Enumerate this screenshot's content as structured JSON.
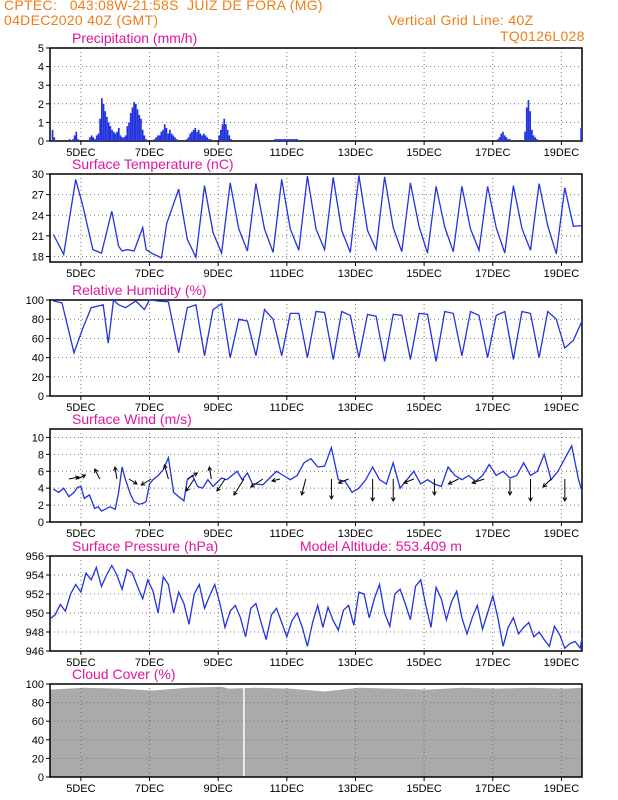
{
  "header": {
    "line1_left": "CPTEC:   043:08W-21:58S  JUIZ DE FORA (MG)",
    "line2_left": "04DEC2020 40Z (GMT)",
    "line1_right": "Vertical Grid Line: 40Z",
    "line2_right": "TQ0126L028"
  },
  "colors": {
    "header": "#ee7d1a",
    "title": "#e0169e",
    "line": "#2233dd",
    "cloud": "#aaaaaa",
    "wind_arrow": "#000000"
  },
  "x_axis": {
    "tick_labels": [
      "5DEC",
      "7DEC",
      "9DEC",
      "11DEC",
      "13DEC",
      "15DEC",
      "17DEC",
      "19DEC"
    ]
  },
  "chart_data": [
    {
      "type": "bar",
      "title": "Precipitation (mm/h)",
      "y_ticks": [
        0,
        1,
        2,
        3,
        4,
        5
      ],
      "ylim": [
        0,
        5
      ],
      "values": [
        0,
        0.6,
        0.2,
        0,
        0,
        0,
        0,
        0,
        0,
        0,
        0,
        0.1,
        0,
        0.1,
        0.3,
        0.5,
        0.1,
        0,
        0,
        0,
        0,
        0,
        0,
        0.2,
        0.3,
        0.2,
        0.1,
        0.3,
        0.4,
        1.2,
        2.3,
        2.0,
        1.6,
        1.3,
        1.0,
        0.8,
        0.6,
        0.5,
        0.4,
        0.5,
        0.7,
        0.3,
        0.2,
        0.2,
        0.3,
        0.8,
        1.0,
        1.5,
        1.8,
        2.1,
        2.0,
        1.7,
        1.4,
        1.2,
        0.6,
        0.3,
        0.1,
        0,
        0,
        0,
        0,
        0.1,
        0.2,
        0.3,
        0.3,
        0.5,
        0.6,
        0.9,
        0.7,
        0.4,
        0.6,
        0.4,
        0.3,
        0.2,
        0.1,
        0,
        0,
        0,
        0,
        0,
        0.1,
        0.2,
        0.4,
        0.5,
        0.6,
        0.7,
        0.5,
        0.6,
        0.4,
        0.3,
        0.4,
        0.3,
        0.2,
        0.1,
        0.1,
        0,
        0,
        0,
        0,
        0.3,
        0.6,
        0.9,
        1.2,
        0.9,
        0.6,
        0.3,
        0.1,
        0,
        0,
        0,
        0,
        0,
        0,
        0,
        0,
        0,
        0,
        0,
        0,
        0,
        0,
        0,
        0,
        0,
        0,
        0,
        0,
        0,
        0,
        0,
        0,
        0,
        0.1,
        0.1,
        0.1,
        0.1,
        0.1,
        0.1,
        0.1,
        0.1,
        0.1,
        0.1,
        0.1,
        0.1,
        0.1,
        0.1,
        0,
        0,
        0,
        0,
        0,
        0,
        0,
        0,
        0,
        0,
        0,
        0,
        0,
        0,
        0,
        0,
        0,
        0,
        0,
        0,
        0,
        0,
        0,
        0,
        0,
        0,
        0,
        0,
        0,
        0,
        0,
        0,
        0,
        0,
        0,
        0,
        0,
        0,
        0,
        0,
        0,
        0,
        0,
        0,
        0,
        0,
        0,
        0,
        0,
        0,
        0,
        0,
        0,
        0,
        0,
        0,
        0,
        0,
        0,
        0,
        0,
        0,
        0,
        0,
        0,
        0,
        0,
        0,
        0,
        0,
        0,
        0,
        0,
        0,
        0,
        0,
        0,
        0,
        0,
        0,
        0,
        0,
        0,
        0,
        0,
        0,
        0,
        0,
        0,
        0,
        0,
        0,
        0,
        0,
        0,
        0,
        0,
        0,
        0,
        0,
        0,
        0,
        0,
        0,
        0,
        0,
        0,
        0,
        0,
        0,
        0,
        0,
        0,
        0,
        0,
        0,
        0,
        0.1,
        0.2,
        0.4,
        0.5,
        0.3,
        0.2,
        0.1,
        0.1,
        0,
        0,
        0,
        0,
        0,
        0,
        0,
        0,
        0.5,
        1.8,
        2.2,
        1.6,
        0.6,
        0.3,
        0.2,
        0.1,
        0,
        0,
        0,
        0,
        0,
        0,
        0,
        0,
        0,
        0,
        0,
        0,
        0,
        0,
        0,
        0,
        0,
        0,
        0,
        0,
        0,
        0,
        0,
        0,
        0,
        0.7
      ]
    },
    {
      "type": "line",
      "title": "Surface Temperature (nC)",
      "y_ticks": [
        18,
        21,
        24,
        27,
        30
      ],
      "ylim": [
        17.2,
        30
      ],
      "x_days": [
        0.1,
        0.4,
        0.75,
        0.95,
        1.25,
        1.5,
        1.8,
        2.0,
        2.1,
        2.25,
        2.45,
        2.7,
        2.8,
        2.95,
        3.25,
        3.4,
        3.75,
        4.0,
        4.25,
        4.5,
        4.75,
        5.0,
        5.25,
        5.5,
        5.75,
        6.0,
        6.25,
        6.5,
        6.75,
        7.0,
        7.25,
        7.5,
        7.75,
        8.0,
        8.25,
        8.5,
        8.75,
        9.0,
        9.25,
        9.5,
        9.75,
        10.0,
        10.25,
        10.5,
        10.75,
        11.0,
        11.25,
        11.5,
        11.75,
        12.0,
        12.25,
        12.5,
        12.75,
        13.0,
        13.25,
        13.5,
        13.75,
        14.0,
        14.25,
        14.5,
        14.75,
        15.0,
        15.25,
        15.5
      ],
      "values": [
        21.2,
        18.3,
        29.2,
        25.5,
        19.0,
        18.5,
        24.6,
        19.5,
        18.8,
        19.0,
        18.8,
        22.2,
        19.0,
        18.5,
        17.8,
        22.8,
        27.8,
        20.5,
        17.9,
        28.3,
        21.5,
        18.5,
        28.7,
        22.0,
        18.8,
        28.6,
        22.0,
        18.6,
        29.2,
        22.0,
        18.9,
        29.7,
        22.0,
        19.0,
        29.5,
        21.8,
        18.6,
        29.8,
        21.8,
        19.0,
        29.6,
        22.2,
        18.7,
        28.7,
        22.4,
        18.5,
        28.2,
        22.3,
        18.7,
        28.2,
        22.0,
        18.9,
        28.2,
        22.2,
        18.5,
        28.3,
        22.1,
        18.9,
        28.6,
        22.5,
        18.4,
        28.0,
        22.4,
        22.5
      ]
    },
    {
      "type": "line",
      "title": "Relative Humidity (%)",
      "y_ticks": [
        0,
        20,
        40,
        60,
        80,
        100
      ],
      "ylim": [
        0,
        100
      ],
      "x_days": [
        0.1,
        0.35,
        0.7,
        0.95,
        1.2,
        1.55,
        1.7,
        1.85,
        2.0,
        2.2,
        2.5,
        2.75,
        2.9,
        3.15,
        3.45,
        3.75,
        4.0,
        4.25,
        4.5,
        4.75,
        5.0,
        5.25,
        5.5,
        5.75,
        6.0,
        6.25,
        6.5,
        6.75,
        7.0,
        7.25,
        7.5,
        7.75,
        8.0,
        8.25,
        8.5,
        8.75,
        9.0,
        9.25,
        9.5,
        9.75,
        10.0,
        10.25,
        10.5,
        10.75,
        11.0,
        11.25,
        11.5,
        11.75,
        12.0,
        12.25,
        12.5,
        12.75,
        13.0,
        13.25,
        13.5,
        13.75,
        14.0,
        14.25,
        14.5,
        14.75,
        15.0,
        15.25,
        15.5
      ],
      "values": [
        99,
        97,
        45,
        70,
        92,
        95,
        55,
        100,
        95,
        92,
        99,
        90,
        100,
        99,
        98,
        45,
        92,
        95,
        42,
        90,
        96,
        40,
        80,
        78,
        42,
        90,
        80,
        42,
        86,
        86,
        40,
        88,
        87,
        38,
        88,
        84,
        40,
        85,
        83,
        36,
        85,
        84,
        38,
        86,
        85,
        36,
        88,
        86,
        42,
        88,
        84,
        40,
        84,
        88,
        38,
        88,
        86,
        40,
        88,
        80,
        50,
        58,
        78
      ]
    },
    {
      "type": "line",
      "title": "Surface Wind (m/s)",
      "y_ticks": [
        0,
        2,
        4,
        6,
        8,
        10
      ],
      "ylim": [
        0,
        11
      ],
      "x_days": [
        0.1,
        0.25,
        0.4,
        0.55,
        0.7,
        0.8,
        0.9,
        1.0,
        1.15,
        1.3,
        1.4,
        1.5,
        1.6,
        1.75,
        1.9,
        2.0,
        2.1,
        2.2,
        2.35,
        2.45,
        2.6,
        2.7,
        2.8,
        2.9,
        3.0,
        3.15,
        3.3,
        3.45,
        3.6,
        3.75,
        3.9,
        4.0,
        4.15,
        4.3,
        4.45,
        4.6,
        4.75,
        4.9,
        5.0,
        5.15,
        5.3,
        5.45,
        5.6,
        5.75,
        5.9,
        6.0,
        6.2,
        6.4,
        6.6,
        6.8,
        7.0,
        7.2,
        7.4,
        7.6,
        7.8,
        8.0,
        8.2,
        8.4,
        8.6,
        8.8,
        9.0,
        9.2,
        9.4,
        9.6,
        9.8,
        10.0,
        10.2,
        10.4,
        10.6,
        10.8,
        11.0,
        11.2,
        11.4,
        11.6,
        11.8,
        12.0,
        12.2,
        12.4,
        12.6,
        12.8,
        13.0,
        13.2,
        13.4,
        13.6,
        13.8,
        14.0,
        14.2,
        14.4,
        14.6,
        14.8,
        15.0,
        15.2,
        15.4,
        15.5
      ],
      "values": [
        3.9,
        3.5,
        4.0,
        3.0,
        3.5,
        4.1,
        4.2,
        2.8,
        3.2,
        1.6,
        1.8,
        1.3,
        1.5,
        1.8,
        1.5,
        3.5,
        6.5,
        5.0,
        3.2,
        2.4,
        2.1,
        2.2,
        2.4,
        4.5,
        5.0,
        5.5,
        6.2,
        7.6,
        3.5,
        3.0,
        2.5,
        5.0,
        5.5,
        4.2,
        4.0,
        5.0,
        4.2,
        4.8,
        5.2,
        5.0,
        5.5,
        6.0,
        5.0,
        5.8,
        4.5,
        4.5,
        4.4,
        5.2,
        6.0,
        5.5,
        5.0,
        5.5,
        7.0,
        7.5,
        6.5,
        6.6,
        8.8,
        5.0,
        4.8,
        3.5,
        4.0,
        5.0,
        6.5,
        5.0,
        4.5,
        7.0,
        4.0,
        5.0,
        6.0,
        4.5,
        5.0,
        4.5,
        4.2,
        6.5,
        5.5,
        5.0,
        5.5,
        4.8,
        5.5,
        6.8,
        5.5,
        6.0,
        5.2,
        5.5,
        7.0,
        5.5,
        6.0,
        8.0,
        5.0,
        6.0,
        7.5,
        9.0,
        5.0,
        3.6
      ]
    },
    {
      "type": "line",
      "title": "Surface Pressure (hPa)",
      "annotation": "Model Altitude: 553.409 m",
      "y_ticks": [
        946,
        948,
        950,
        952,
        954,
        956
      ],
      "ylim": [
        946,
        956
      ],
      "x_days": [
        0,
        0.15,
        0.3,
        0.45,
        0.6,
        0.75,
        0.9,
        1.05,
        1.2,
        1.35,
        1.5,
        1.65,
        1.8,
        1.95,
        2.1,
        2.25,
        2.4,
        2.55,
        2.7,
        2.85,
        3.0,
        3.15,
        3.3,
        3.45,
        3.6,
        3.75,
        3.9,
        4.05,
        4.2,
        4.35,
        4.5,
        4.65,
        4.8,
        4.95,
        5.1,
        5.25,
        5.4,
        5.55,
        5.7,
        5.85,
        6.0,
        6.15,
        6.3,
        6.45,
        6.6,
        6.75,
        6.9,
        7.05,
        7.2,
        7.35,
        7.5,
        7.65,
        7.8,
        7.95,
        8.1,
        8.25,
        8.4,
        8.55,
        8.7,
        8.85,
        9.0,
        9.15,
        9.3,
        9.45,
        9.6,
        9.75,
        9.9,
        10.05,
        10.2,
        10.35,
        10.5,
        10.65,
        10.8,
        10.95,
        11.1,
        11.25,
        11.4,
        11.55,
        11.7,
        11.85,
        12.0,
        12.15,
        12.3,
        12.45,
        12.6,
        12.75,
        12.9,
        13.05,
        13.2,
        13.35,
        13.5,
        13.65,
        13.8,
        13.95,
        14.1,
        14.25,
        14.4,
        14.55,
        14.7,
        14.85,
        15.0,
        15.15,
        15.3,
        15.45,
        15.5
      ],
      "values": [
        949.4,
        949.8,
        950.9,
        950.2,
        952.0,
        953.0,
        952.2,
        954.2,
        953.5,
        954.8,
        952.8,
        954.0,
        955.0,
        954.0,
        952.5,
        954.6,
        954.2,
        952.8,
        951.5,
        953.5,
        952.3,
        950.0,
        953.8,
        953.0,
        950.0,
        952.2,
        951.0,
        948.8,
        952.0,
        953.0,
        950.5,
        951.8,
        953.0,
        951.0,
        948.5,
        950.2,
        950.8,
        949.5,
        947.5,
        950.5,
        951.0,
        949.0,
        947.2,
        949.8,
        950.5,
        949.0,
        947.5,
        949.2,
        950.0,
        948.5,
        946.5,
        949.0,
        950.8,
        948.5,
        950.6,
        949.2,
        948.2,
        950.3,
        950.8,
        948.7,
        952.2,
        952.0,
        949.5,
        951.5,
        953.0,
        950.0,
        948.6,
        952.0,
        952.5,
        951.0,
        949.3,
        952.8,
        953.5,
        950.8,
        948.5,
        952.7,
        951.5,
        949.3,
        951.2,
        952.3,
        949.5,
        947.8,
        949.5,
        950.8,
        948.3,
        950.0,
        951.8,
        949.5,
        946.5,
        948.5,
        949.5,
        947.8,
        948.5,
        949.0,
        947.5,
        948.0,
        947.2,
        946.5,
        948.6,
        947.7,
        946.3,
        946.8,
        947.0,
        946.3,
        947.4
      ]
    },
    {
      "type": "area",
      "title": "Cloud Cover (%)",
      "y_ticks": [
        0,
        20,
        40,
        60,
        80,
        100
      ],
      "ylim": [
        0,
        100
      ],
      "x_days": [
        0,
        1,
        2,
        3,
        4,
        5,
        5.2,
        6,
        7,
        8,
        9,
        10,
        11,
        12,
        13,
        14,
        15,
        15.5
      ],
      "values": [
        94,
        96,
        95,
        93,
        96,
        97,
        95,
        96,
        95,
        92,
        96,
        95,
        94,
        96,
        95,
        96,
        95,
        96
      ],
      "gap_at_day": 5.65
    }
  ]
}
